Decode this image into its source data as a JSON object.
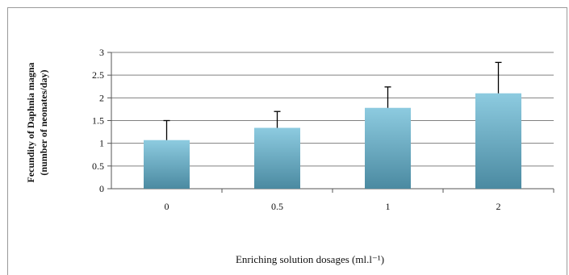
{
  "chart_data": {
    "type": "bar",
    "categories": [
      "0",
      "0.5",
      "1",
      "2"
    ],
    "values": [
      1.07,
      1.34,
      1.78,
      2.1
    ],
    "error_up": [
      0.43,
      0.36,
      0.46,
      0.68
    ],
    "title": "",
    "xlabel": "Enriching solution dosages (ml.l⁻¹)",
    "ylabel_line1": "Fecundity of Daphnia magna",
    "ylabel_line2": "(number of neonates/day)",
    "ylim": [
      0,
      3
    ],
    "yticks": [
      "0",
      "0.5",
      "1",
      "1.5",
      "2",
      "2.5",
      "3"
    ],
    "grid": true,
    "legend": "none",
    "colors": {
      "bar_top": "#8dcbe0",
      "bar_bottom": "#4b8aa1",
      "grid": "#808080"
    }
  }
}
